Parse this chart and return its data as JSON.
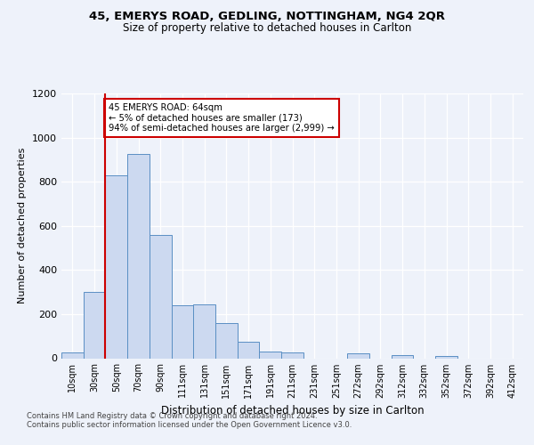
{
  "title1": "45, EMERYS ROAD, GEDLING, NOTTINGHAM, NG4 2QR",
  "title2": "Size of property relative to detached houses in Carlton",
  "xlabel": "Distribution of detached houses by size in Carlton",
  "ylabel": "Number of detached properties",
  "bar_labels": [
    "10sqm",
    "30sqm",
    "50sqm",
    "70sqm",
    "90sqm",
    "111sqm",
    "131sqm",
    "151sqm",
    "171sqm",
    "191sqm",
    "211sqm",
    "231sqm",
    "251sqm",
    "272sqm",
    "292sqm",
    "312sqm",
    "332sqm",
    "352sqm",
    "372sqm",
    "392sqm",
    "412sqm"
  ],
  "bar_values": [
    28,
    300,
    830,
    925,
    560,
    240,
    245,
    160,
    75,
    30,
    28,
    0,
    0,
    22,
    0,
    15,
    0,
    10,
    0,
    0,
    0
  ],
  "bar_color": "#ccd9f0",
  "bar_edgecolor": "#5a8fc4",
  "vline_x": 1.5,
  "vline_color": "#cc0000",
  "annotation_text": "45 EMERYS ROAD: 64sqm\n← 5% of detached houses are smaller (173)\n94% of semi-detached houses are larger (2,999) →",
  "annotation_box_edgecolor": "#cc0000",
  "ylim": [
    0,
    1200
  ],
  "yticks": [
    0,
    200,
    400,
    600,
    800,
    1000,
    1200
  ],
  "footer1": "Contains HM Land Registry data © Crown copyright and database right 2024.",
  "footer2": "Contains public sector information licensed under the Open Government Licence v3.0.",
  "bg_color": "#eef2fa",
  "plot_bg_color": "#eef2fa"
}
